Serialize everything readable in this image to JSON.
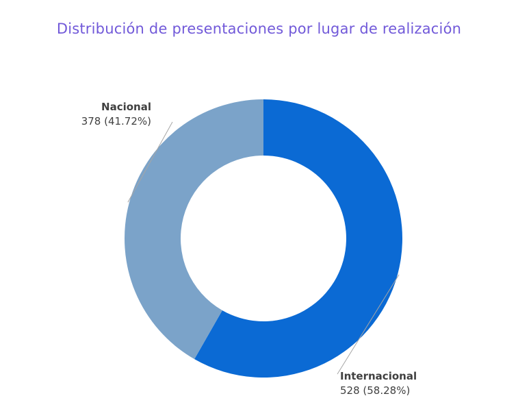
{
  "chart_data": {
    "type": "pie",
    "title": "Distribución de presentaciones por lugar de realización",
    "donut": true,
    "slices": [
      {
        "label": "Internacional",
        "value": 528,
        "percent_label": "528 (58.28%)",
        "color": "#0b6ad4"
      },
      {
        "label": "Nacional",
        "value": 378,
        "percent_label": "378 (41.72%)",
        "color": "#7ba3c9"
      }
    ],
    "legend": "none",
    "title_color": "#7159d9"
  }
}
